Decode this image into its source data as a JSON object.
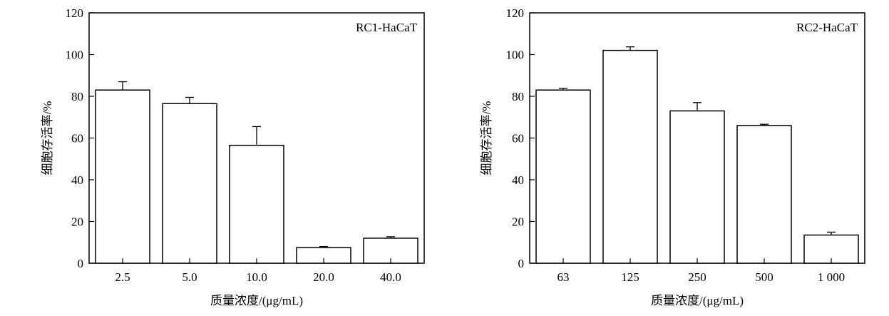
{
  "chart_data": [
    {
      "type": "bar",
      "annotation": "RC1-HaCaT",
      "xlabel": "质量浓度/(μg/mL)",
      "ylabel": "细胞存活率/%",
      "ylim": [
        0,
        120
      ],
      "yticks": [
        0,
        20,
        40,
        60,
        80,
        100,
        120
      ],
      "categories": [
        "2.5",
        "5.0",
        "10.0",
        "20.0",
        "40.0"
      ],
      "values": [
        83,
        76.5,
        56.5,
        7.5,
        12
      ],
      "errors": [
        4,
        3,
        9,
        0.5,
        0.7
      ]
    },
    {
      "type": "bar",
      "annotation": "RC2-HaCaT",
      "xlabel": "质量浓度/(μg/mL)",
      "ylabel": "细胞存活率/%",
      "ylim": [
        0,
        120
      ],
      "yticks": [
        0,
        20,
        40,
        60,
        80,
        100,
        120
      ],
      "categories": [
        "63",
        "125",
        "250",
        "500",
        "1 000"
      ],
      "values": [
        83,
        102,
        73,
        66,
        13.5
      ],
      "errors": [
        0.8,
        1.7,
        4,
        0.6,
        1.4
      ]
    }
  ]
}
